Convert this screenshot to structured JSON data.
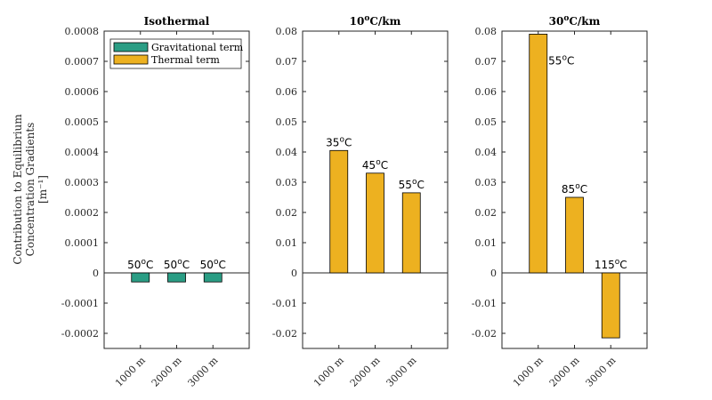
{
  "chart_data": [
    {
      "type": "bar",
      "title": "Isothermal",
      "categories": [
        "1000 m",
        "2000 m",
        "3000 m"
      ],
      "ylabel": [
        "Contribution to Equilibrium",
        "Concentration Gradients",
        "[m⁻¹]"
      ],
      "ylim": [
        -0.00025,
        0.0008
      ],
      "yticks": [
        "-0.0002",
        "-0.0001",
        "0",
        "0.0001",
        "0.0002",
        "0.0003",
        "0.0004",
        "0.0005",
        "0.0006",
        "0.0007",
        "0.0008"
      ],
      "ytick_values": [
        -0.0002,
        -0.0001,
        0,
        0.0001,
        0.0002,
        0.0003,
        0.0004,
        0.0005,
        0.0006,
        0.0007,
        0.0008
      ],
      "series": [
        {
          "name": "Gravitational term",
          "color": "#2a9d84",
          "values": [
            -3e-05,
            -3e-05,
            -3e-05
          ]
        }
      ],
      "labels": [
        "50°C",
        "50°C",
        "50°C"
      ],
      "legend": {
        "position": "top-left",
        "entries": [
          {
            "label": "Gravitational term",
            "color": "#2a9d84"
          },
          {
            "label": "Thermal term",
            "color": "#edb120"
          }
        ]
      }
    },
    {
      "type": "bar",
      "title": "10°C/km",
      "categories": [
        "1000 m",
        "2000 m",
        "3000 m"
      ],
      "ylim": [
        -0.025,
        0.08
      ],
      "yticks": [
        "-0.02",
        "-0.01",
        "0",
        "0.01",
        "0.02",
        "0.03",
        "0.04",
        "0.05",
        "0.06",
        "0.07",
        "0.08"
      ],
      "ytick_values": [
        -0.02,
        -0.01,
        0,
        0.01,
        0.02,
        0.03,
        0.04,
        0.05,
        0.06,
        0.07,
        0.08
      ],
      "series": [
        {
          "name": "Thermal term",
          "color": "#edb120",
          "values": [
            0.0405,
            0.033,
            0.0265
          ]
        }
      ],
      "labels": [
        "35°C",
        "45°C",
        "55°C"
      ]
    },
    {
      "type": "bar",
      "title": "30°C/km",
      "categories": [
        "1000 m",
        "2000 m",
        "3000 m"
      ],
      "ylim": [
        -0.025,
        0.08
      ],
      "yticks": [
        "-0.02",
        "-0.01",
        "0",
        "0.01",
        "0.02",
        "0.03",
        "0.04",
        "0.05",
        "0.06",
        "0.07",
        "0.08"
      ],
      "ytick_values": [
        -0.02,
        -0.01,
        0,
        0.01,
        0.02,
        0.03,
        0.04,
        0.05,
        0.06,
        0.07,
        0.08
      ],
      "series": [
        {
          "name": "Thermal term",
          "color": "#edb120",
          "values": [
            0.079,
            0.025,
            -0.0215
          ]
        }
      ],
      "labels": [
        "55°C",
        "85°C",
        "115°C"
      ]
    }
  ]
}
